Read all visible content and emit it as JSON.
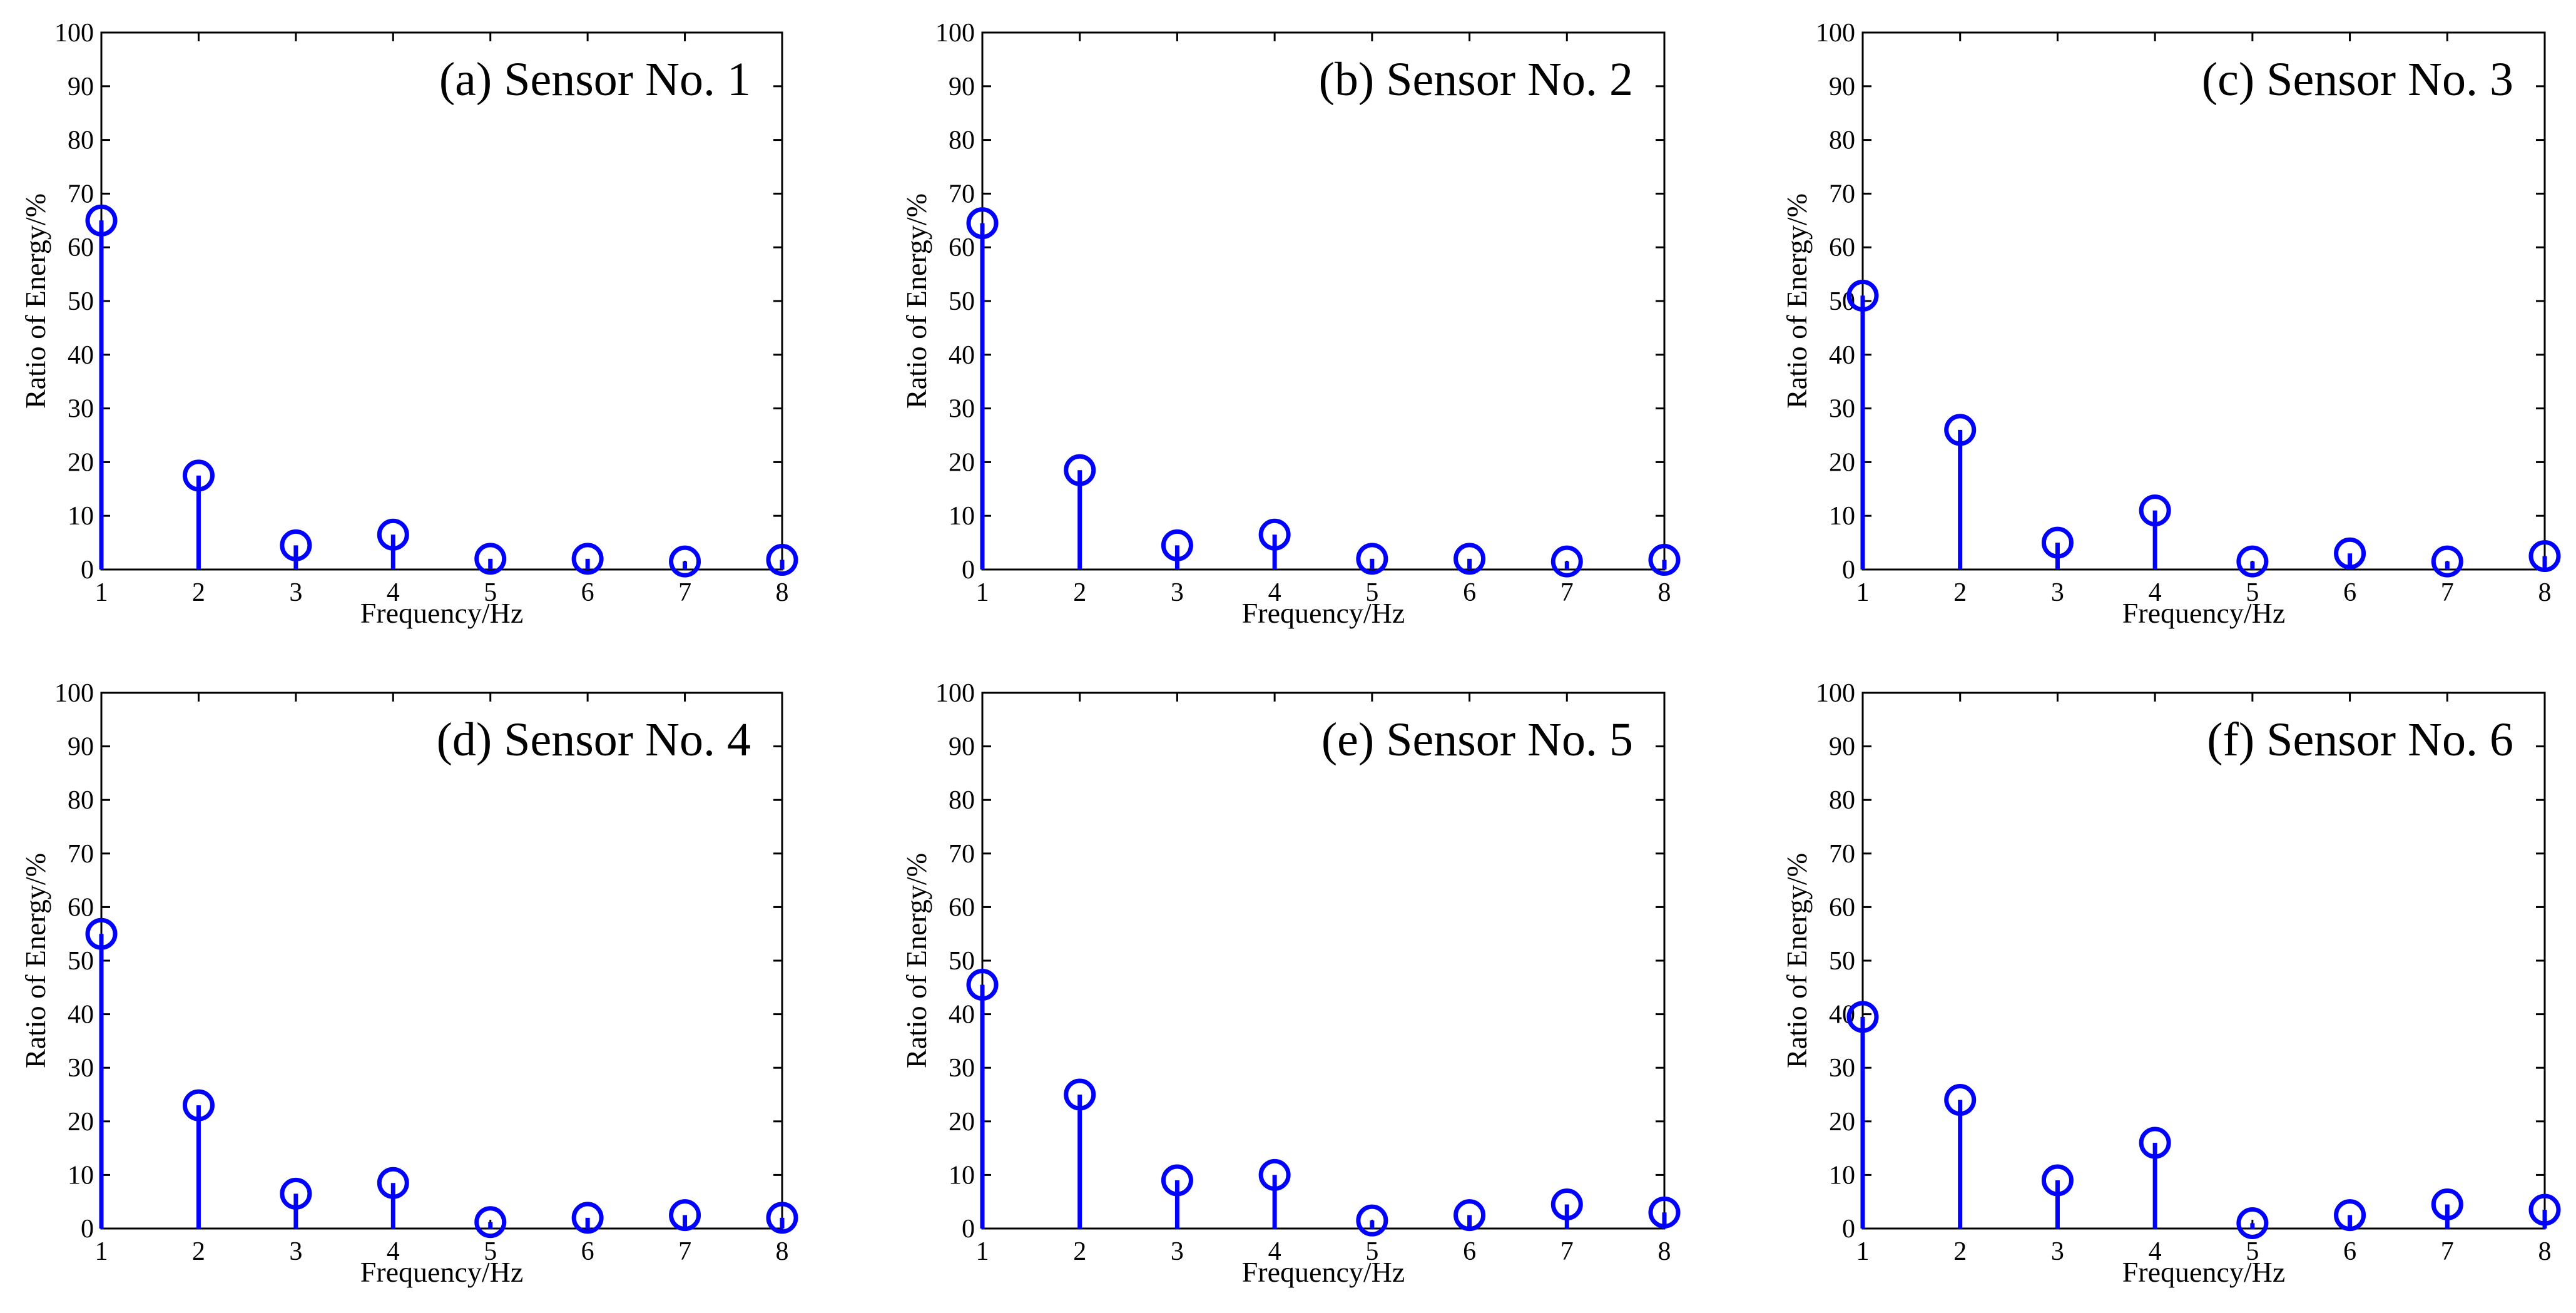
{
  "chart_data": [
    {
      "type": "stem",
      "title": "(a) Sensor No. 1",
      "xlabel": "Frequency/Hz",
      "ylabel": "Ratio of Energy/%",
      "xlim": [
        1,
        8
      ],
      "ylim": [
        0,
        100
      ],
      "x": [
        1,
        2,
        3,
        4,
        5,
        6,
        7,
        8
      ],
      "values": [
        65,
        17.5,
        4.5,
        6.5,
        2,
        2,
        1.5,
        1.8
      ],
      "xticks": [
        "1",
        "2",
        "3",
        "4",
        "5",
        "6",
        "7",
        "8"
      ],
      "yticks": [
        "0",
        "10",
        "20",
        "30",
        "40",
        "50",
        "60",
        "70",
        "80",
        "90",
        "100"
      ],
      "grid": false,
      "color": "#0000ff"
    },
    {
      "type": "stem",
      "title": "(b) Sensor No. 2",
      "xlabel": "Frequency/Hz",
      "ylabel": "Ratio of Energy/%",
      "xlim": [
        1,
        8
      ],
      "ylim": [
        0,
        100
      ],
      "x": [
        1,
        2,
        3,
        4,
        5,
        6,
        7,
        8
      ],
      "values": [
        64.5,
        18.5,
        4.5,
        6.5,
        2,
        2,
        1.5,
        1.8
      ],
      "xticks": [
        "1",
        "2",
        "3",
        "4",
        "5",
        "6",
        "7",
        "8"
      ],
      "yticks": [
        "0",
        "10",
        "20",
        "30",
        "40",
        "50",
        "60",
        "70",
        "80",
        "90",
        "100"
      ],
      "grid": false,
      "color": "#0000ff"
    },
    {
      "type": "stem",
      "title": "(c) Sensor No. 3",
      "xlabel": "Frequency/Hz",
      "ylabel": "Ratio of Energy/%",
      "xlim": [
        1,
        8
      ],
      "ylim": [
        0,
        100
      ],
      "x": [
        1,
        2,
        3,
        4,
        5,
        6,
        7,
        8
      ],
      "values": [
        51,
        26,
        5,
        11,
        1.5,
        3,
        1.5,
        2.5
      ],
      "xticks": [
        "1",
        "2",
        "3",
        "4",
        "5",
        "6",
        "7",
        "8"
      ],
      "yticks": [
        "0",
        "10",
        "20",
        "30",
        "40",
        "50",
        "60",
        "70",
        "80",
        "90",
        "100"
      ],
      "grid": false,
      "color": "#0000ff"
    },
    {
      "type": "stem",
      "title": "(d) Sensor No. 4",
      "xlabel": "Frequency/Hz",
      "ylabel": "Ratio of Energy/%",
      "xlim": [
        1,
        8
      ],
      "ylim": [
        0,
        100
      ],
      "x": [
        1,
        2,
        3,
        4,
        5,
        6,
        7,
        8
      ],
      "values": [
        55,
        23,
        6.5,
        8.5,
        1.2,
        2,
        2.5,
        2
      ],
      "xticks": [
        "1",
        "2",
        "3",
        "4",
        "5",
        "6",
        "7",
        "8"
      ],
      "yticks": [
        "0",
        "10",
        "20",
        "30",
        "40",
        "50",
        "60",
        "70",
        "80",
        "90",
        "100"
      ],
      "grid": false,
      "color": "#0000ff"
    },
    {
      "type": "stem",
      "title": "(e) Sensor No. 5",
      "xlabel": "Frequency/Hz",
      "ylabel": "Ratio of Energy/%",
      "xlim": [
        1,
        8
      ],
      "ylim": [
        0,
        100
      ],
      "x": [
        1,
        2,
        3,
        4,
        5,
        6,
        7,
        8
      ],
      "values": [
        45.5,
        25,
        9,
        10,
        1.5,
        2.5,
        4.5,
        3
      ],
      "xticks": [
        "1",
        "2",
        "3",
        "4",
        "5",
        "6",
        "7",
        "8"
      ],
      "yticks": [
        "0",
        "10",
        "20",
        "30",
        "40",
        "50",
        "60",
        "70",
        "80",
        "90",
        "100"
      ],
      "grid": false,
      "color": "#0000ff"
    },
    {
      "type": "stem",
      "title": "(f) Sensor No. 6",
      "xlabel": "Frequency/Hz",
      "ylabel": "Ratio of Energy/%",
      "xlim": [
        1,
        8
      ],
      "ylim": [
        0,
        100
      ],
      "x": [
        1,
        2,
        3,
        4,
        5,
        6,
        7,
        8
      ],
      "values": [
        39.5,
        24,
        9,
        16,
        1,
        2.5,
        4.5,
        3.5
      ],
      "xticks": [
        "1",
        "2",
        "3",
        "4",
        "5",
        "6",
        "7",
        "8"
      ],
      "yticks": [
        "0",
        "10",
        "20",
        "30",
        "40",
        "50",
        "60",
        "70",
        "80",
        "90",
        "100"
      ],
      "grid": false,
      "color": "#0000ff"
    }
  ]
}
